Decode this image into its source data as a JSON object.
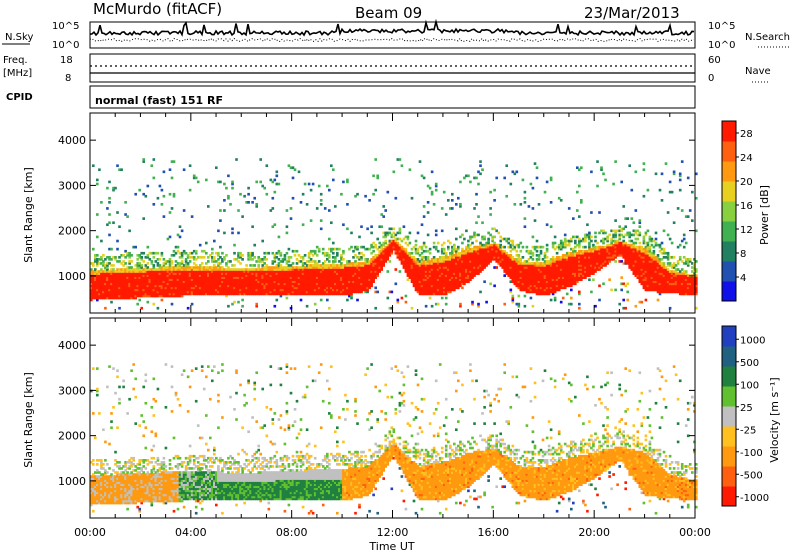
{
  "header": {
    "station": "McMurdo (fitACF)",
    "beam": "Beam 09",
    "date": "23/Mar/2013"
  },
  "noise_panel": {
    "left_label": "N.Sky",
    "right_label": "N.Search",
    "left_ticks": [
      "10^5",
      "10^0"
    ],
    "right_ticks": [
      "10^5",
      "10^0"
    ]
  },
  "freq_panel": {
    "left_label_1": "Freq.",
    "left_label_2": "[MHz]",
    "left_ticks": [
      "18",
      "8"
    ],
    "right_ticks": [
      "60",
      "0"
    ],
    "right_label": "Nave"
  },
  "cpid": {
    "label": "CPID",
    "value": "normal (fast) 151 RF"
  },
  "chart_data": [
    {
      "type": "heatmap",
      "title": "",
      "xlabel": "Time UT",
      "ylabel": "Slant Range [km]",
      "x_ticks": [
        "00:00",
        "04:00",
        "08:00",
        "12:00",
        "16:00",
        "20:00",
        "00:00"
      ],
      "y_ticks": [
        "1000",
        "2000",
        "3000",
        "4000"
      ],
      "xlim": [
        0,
        24
      ],
      "ylim": [
        180,
        4600
      ],
      "colorbar": {
        "label": "Power [dB]",
        "ticks": [
          "4",
          "8",
          "12",
          "16",
          "20",
          "24",
          "28"
        ],
        "range": [
          0,
          30
        ],
        "colors": [
          "#1010e8",
          "#2050b0",
          "#208060",
          "#40b050",
          "#88d040",
          "#e8d020",
          "#ff9a10",
          "#ff6010",
          "#ff1a00"
        ]
      },
      "ground_scatter_floor_km": [
        [
          0,
          600
        ],
        [
          2,
          650
        ],
        [
          4,
          700
        ],
        [
          6,
          700
        ],
        [
          8,
          700
        ],
        [
          10,
          700
        ],
        [
          11,
          800
        ],
        [
          12,
          1700
        ],
        [
          13,
          700
        ],
        [
          14,
          700
        ],
        [
          15,
          1000
        ],
        [
          16,
          1500
        ],
        [
          17,
          800
        ],
        [
          18,
          700
        ],
        [
          19,
          900
        ],
        [
          20,
          1200
        ],
        [
          21,
          1600
        ],
        [
          22,
          800
        ],
        [
          24,
          700
        ]
      ],
      "main_band_top_km": [
        [
          0,
          1100
        ],
        [
          2,
          1150
        ],
        [
          4,
          1200
        ],
        [
          6,
          1150
        ],
        [
          8,
          1200
        ],
        [
          10,
          1250
        ],
        [
          11,
          1300
        ],
        [
          12,
          1800
        ],
        [
          13,
          1300
        ],
        [
          14,
          1400
        ],
        [
          15,
          1600
        ],
        [
          16,
          1700
        ],
        [
          17,
          1300
        ],
        [
          18,
          1300
        ],
        [
          19,
          1500
        ],
        [
          20,
          1600
        ],
        [
          21,
          1750
        ],
        [
          22,
          1600
        ],
        [
          23,
          1100
        ],
        [
          24,
          1000
        ]
      ]
    },
    {
      "type": "heatmap",
      "title": "",
      "xlabel": "Time UT",
      "ylabel": "Slant Range [km]",
      "x_ticks": [
        "00:00",
        "04:00",
        "08:00",
        "12:00",
        "16:00",
        "20:00",
        "00:00"
      ],
      "y_ticks": [
        "1000",
        "2000",
        "3000",
        "4000"
      ],
      "xlim": [
        0,
        24
      ],
      "ylim": [
        180,
        4600
      ],
      "colorbar": {
        "label": "Velocity [m s⁻¹]",
        "ticks": [
          "1000",
          "500",
          "100",
          "25",
          "-25",
          "-100",
          "-500",
          "-1000"
        ],
        "colors": [
          "#2040c0",
          "#206080",
          "#208040",
          "#60c030",
          "#c0c0c0",
          "#ffc020",
          "#ff9a10",
          "#ff6010",
          "#ff1a00"
        ]
      },
      "regions": [
        {
          "x": [
            0,
            3.5
          ],
          "range_km": [
            400,
            1200
          ],
          "velocity": "-100 to -500 (orange)"
        },
        {
          "x": [
            3.5,
            5
          ],
          "range_km": [
            400,
            1300
          ],
          "velocity": "mixed green/grey"
        },
        {
          "x": [
            5,
            10
          ],
          "range_km": [
            400,
            1300
          ],
          "velocity": "25 to 100 (green) and -25 to 25 (grey)"
        },
        {
          "x": [
            10,
            22.5
          ],
          "range_km": [
            500,
            1800
          ],
          "velocity": "-100 to -1000 (orange/red)"
        }
      ]
    }
  ]
}
